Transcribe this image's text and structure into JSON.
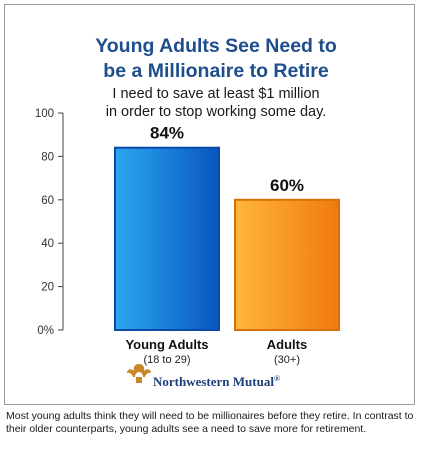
{
  "chart_data": {
    "type": "bar",
    "title_lines": [
      "Young Adults See Need to",
      "be a Millionaire to Retire"
    ],
    "subtitle_lines": [
      "I need to save at least $1 million",
      "in order to stop working some day."
    ],
    "categories": [
      "Young Adults",
      "Adults"
    ],
    "category_sublabels": [
      "(18 to 29)",
      "(30+)"
    ],
    "values": [
      84,
      60
    ],
    "value_labels": [
      "84%",
      "60%"
    ],
    "ylim": [
      0,
      100
    ],
    "yticks": [
      0,
      20,
      40,
      60,
      80,
      100
    ],
    "ytick_labels": [
      "0%",
      "20",
      "40",
      "60",
      "80",
      "100"
    ],
    "grid": false,
    "bar_colors": [
      {
        "light": "#2aa8f0",
        "dark": "#0a55c0",
        "edge": "#0a4aa8"
      },
      {
        "light": "#ffb63a",
        "dark": "#f07a10",
        "edge": "#d8700a"
      }
    ],
    "title_color": "#1f4e8c"
  },
  "logo": {
    "text": "Northwestern Mutual",
    "mark": "®",
    "icon": "acanthus-leaf-icon",
    "color": "#c8872a"
  },
  "caption": "Most young adults think they will need to be millionaires before they retire. In contrast to their older counterparts, young adults see a need to save more for retirement."
}
